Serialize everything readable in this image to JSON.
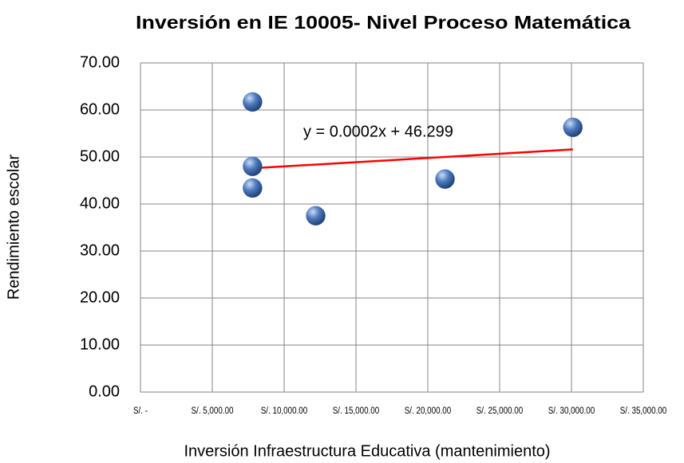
{
  "chart_data": {
    "type": "scatter",
    "title": "Inversión en IE  10005- Nivel Proceso Matemática",
    "xlabel": "Inversión Infraestructura Educativa (mantenimiento)",
    "ylabel": "Rendimiento escolar",
    "x": [
      7800,
      7800,
      7800,
      12200,
      21200,
      30100
    ],
    "values": [
      61.7,
      48.0,
      43.4,
      37.5,
      45.3,
      56.3
    ],
    "color": "#4f7bbf",
    "xlim": [
      0,
      35000
    ],
    "xticks": [
      {
        "value": 0,
        "label": "S/. -"
      },
      {
        "value": 5000,
        "label": "S/. 5,000.00"
      },
      {
        "value": 10000,
        "label": "S/. 10,000.00"
      },
      {
        "value": 15000,
        "label": "S/. 15,000.00"
      },
      {
        "value": 20000,
        "label": "S/. 20,000.00"
      },
      {
        "value": 25000,
        "label": "S/. 25,000.00"
      },
      {
        "value": 30000,
        "label": "S/. 30,000.00"
      },
      {
        "value": 35000,
        "label": "S/. 35,000.00"
      }
    ],
    "ylim": [
      0,
      70
    ],
    "yticks": [
      {
        "value": 0,
        "label": "0.00"
      },
      {
        "value": 10,
        "label": "10.00"
      },
      {
        "value": 20,
        "label": "20.00"
      },
      {
        "value": 30,
        "label": "30.00"
      },
      {
        "value": 40,
        "label": "40.00"
      },
      {
        "value": 50,
        "label": "50.00"
      },
      {
        "value": 60,
        "label": "60.00"
      },
      {
        "value": 70,
        "label": "70.00"
      }
    ],
    "grid": true,
    "trendline": {
      "label": "y = 0.0002x + 46.299",
      "x": [
        7800,
        30100
      ],
      "y": [
        47.6,
        51.6
      ],
      "color": "#ff0000"
    }
  }
}
